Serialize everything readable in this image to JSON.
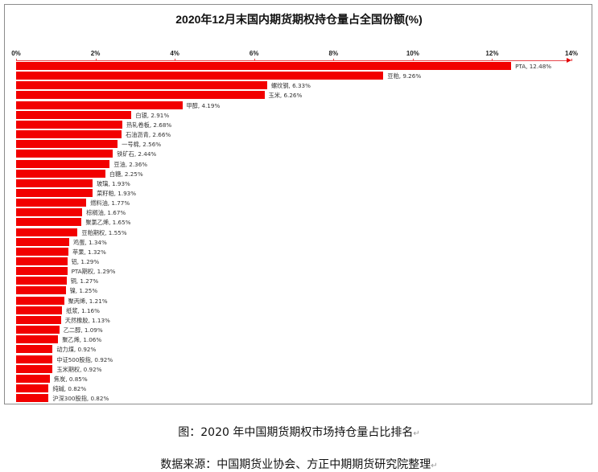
{
  "chart_data": {
    "type": "bar",
    "orientation": "horizontal",
    "title": "2020年12月末国内期货期权持仓量占全国份额(%)",
    "xlabel": "",
    "ylabel": "",
    "xlim": [
      0,
      14
    ],
    "x_ticks": [
      "0%",
      "2%",
      "4%",
      "6%",
      "8%",
      "10%",
      "12%",
      "14%"
    ],
    "x_axis_position": "top",
    "grid": false,
    "legend": false,
    "bar_color": "#f20000",
    "categories": [
      "PTA",
      "豆粕",
      "螺纹钢",
      "玉米",
      "甲醇",
      "白银",
      "热轧卷板",
      "石油沥青",
      "一号棉",
      "铁矿石",
      "豆油",
      "白糖",
      "玻璃",
      "菜籽粕",
      "燃料油",
      "棕榈油",
      "聚氯乙烯",
      "豆粕期权",
      "鸡蛋",
      "苹果",
      "铝",
      "PTA期权",
      "铜",
      "镍",
      "聚丙烯",
      "纸浆",
      "天然橡胶",
      "乙二醇",
      "聚乙烯",
      "动力煤",
      "中证500股指",
      "玉米期权",
      "焦炭",
      "纯碱",
      "沪深300股指"
    ],
    "values": [
      12.48,
      9.26,
      6.33,
      6.26,
      4.19,
      2.91,
      2.68,
      2.66,
      2.56,
      2.44,
      2.36,
      2.25,
      1.93,
      1.93,
      1.77,
      1.67,
      1.65,
      1.55,
      1.34,
      1.32,
      1.29,
      1.29,
      1.27,
      1.25,
      1.21,
      1.16,
      1.13,
      1.09,
      1.06,
      0.92,
      0.92,
      0.92,
      0.85,
      0.82,
      0.82
    ],
    "data_labels": [
      "PTA, 12.48%",
      "豆粕, 9.26%",
      "螺纹钢, 6.33%",
      "玉米, 6.26%",
      "甲醇, 4.19%",
      "白银, 2.91%",
      "热轧卷板, 2.68%",
      "石油沥青, 2.66%",
      "一号棉, 2.56%",
      "铁矿石, 2.44%",
      "豆油, 2.36%",
      "白糖, 2.25%",
      "玻璃, 1.93%",
      "菜籽粕, 1.93%",
      "燃料油, 1.77%",
      "棕榈油, 1.67%",
      "聚氯乙烯, 1.65%",
      "豆粕期权, 1.55%",
      "鸡蛋, 1.34%",
      "苹果, 1.32%",
      "铝, 1.29%",
      "PTA期权, 1.29%",
      "铜, 1.27%",
      "镍, 1.25%",
      "聚丙烯, 1.21%",
      "纸浆, 1.16%",
      "天然橡胶, 1.13%",
      "乙二醇, 1.09%",
      "聚乙烯, 1.06%",
      "动力煤, 0.92%",
      "中证500股指, 0.92%",
      "玉米期权, 0.92%",
      "焦炭, 0.85%",
      "纯碱, 0.82%",
      "沪深300股指, 0.82%"
    ]
  },
  "captions": {
    "figure": "图：2020 年中国期货期权市场持仓量占比排名",
    "source": "数据来源：中国期货业协会、方正中期期货研究院整理"
  }
}
